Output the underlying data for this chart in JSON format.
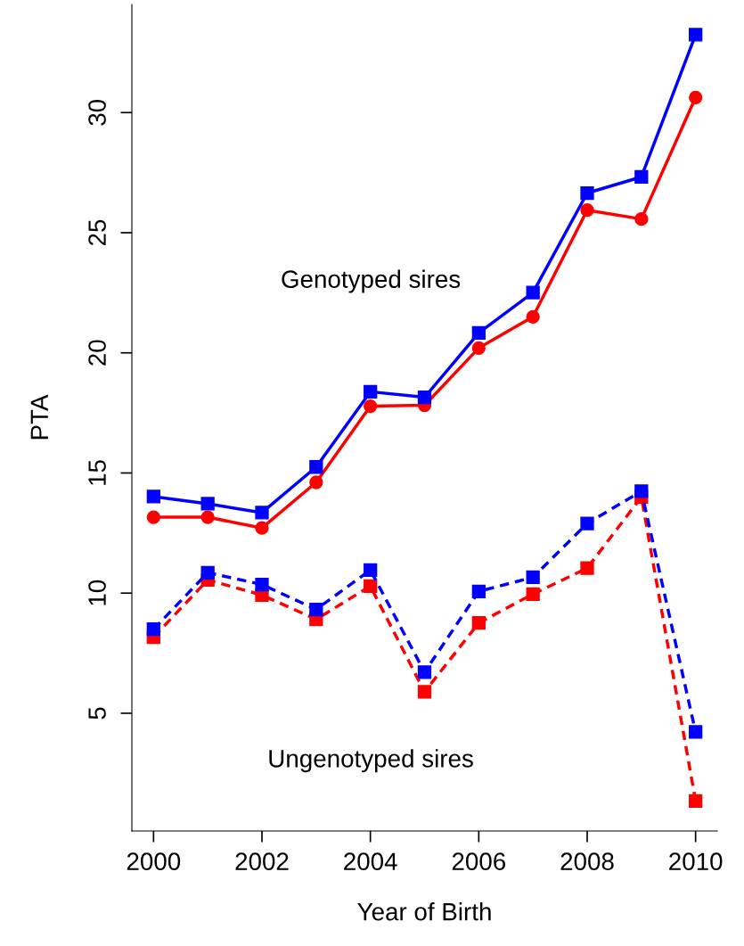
{
  "chart_data": {
    "type": "line",
    "xlabel": "Year of Birth",
    "ylabel": "PTA",
    "x": [
      2000,
      2001,
      2002,
      2003,
      2004,
      2005,
      2006,
      2007,
      2008,
      2009,
      2010
    ],
    "xlim": [
      1999.6,
      2010.4
    ],
    "xticks": [
      2000,
      2002,
      2004,
      2006,
      2008,
      2010
    ],
    "ylim": [
      0.1,
      34.5
    ],
    "yticks": [
      5,
      10,
      15,
      20,
      25,
      30
    ],
    "grid": false,
    "legend": false,
    "series": [
      {
        "color": "#0000ff",
        "marker": "square",
        "line_style": "solid",
        "values": [
          14.02,
          13.72,
          13.35,
          15.25,
          18.38,
          18.15,
          20.83,
          22.51,
          26.65,
          27.32,
          33.24
        ]
      },
      {
        "color": "#ff0000",
        "marker": "circle",
        "line_style": "solid",
        "values": [
          13.16,
          13.16,
          12.71,
          14.61,
          17.78,
          17.82,
          20.2,
          21.5,
          25.94,
          25.57,
          30.63
        ]
      },
      {
        "color": "#0000ff",
        "marker": "square",
        "line_style": "dashed",
        "values": [
          8.5,
          10.85,
          10.36,
          9.32,
          10.96,
          6.71,
          10.07,
          10.66,
          12.9,
          14.24,
          4.22
        ]
      },
      {
        "color": "#ff0000",
        "marker": "square",
        "line_style": "dashed",
        "values": [
          8.17,
          10.55,
          9.92,
          8.91,
          10.29,
          5.89,
          8.76,
          9.96,
          11.04,
          14.0,
          1.35
        ]
      }
    ],
    "annotations": [
      "Genotyped sires",
      "Ungenotyped sires"
    ]
  }
}
